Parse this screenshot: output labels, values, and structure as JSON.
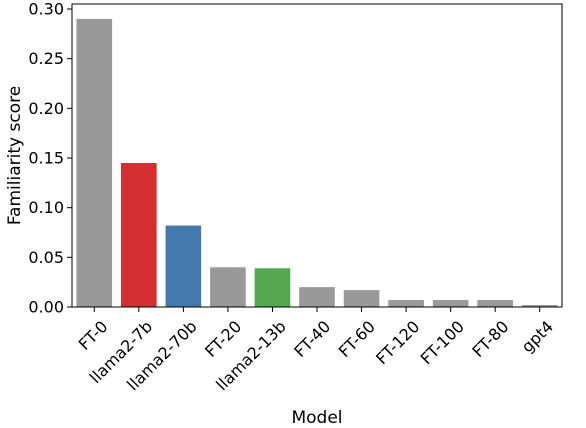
{
  "chart_data": {
    "type": "bar",
    "title": "",
    "xlabel": "Model",
    "ylabel": "Familiarity score",
    "categories": [
      "FT-0",
      "llama2-7b",
      "llama2-70b",
      "FT-20",
      "llama2-13b",
      "FT-40",
      "FT-60",
      "FT-120",
      "FT-100",
      "FT-80",
      "gpt4"
    ],
    "values": [
      0.29,
      0.145,
      0.082,
      0.04,
      0.039,
      0.02,
      0.017,
      0.007,
      0.007,
      0.007,
      0.002
    ],
    "colors": [
      "#999999",
      "#d62f33",
      "#4479ad",
      "#999999",
      "#55a84f",
      "#999999",
      "#999999",
      "#999999",
      "#999999",
      "#999999",
      "#999999"
    ],
    "ylim": [
      0,
      0.3
    ],
    "yticks": [
      "0.00",
      "0.05",
      "0.10",
      "0.15",
      "0.20",
      "0.25",
      "0.30"
    ],
    "grid": false,
    "legend": "none"
  }
}
